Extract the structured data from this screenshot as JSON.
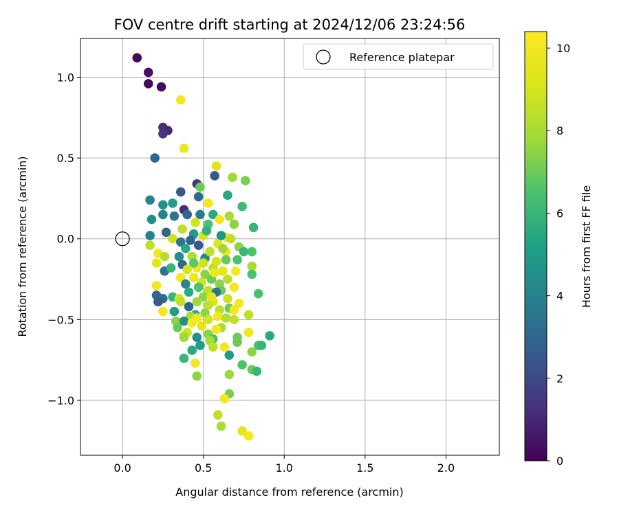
{
  "chart_data": {
    "type": "scatter",
    "title": "FOV centre drift starting at 2024/12/06 23:24:56",
    "xlabel": "Angular distance from reference (arcmin)",
    "ylabel": "Rotation from reference (arcmin)",
    "xlim": [
      -0.26,
      2.33
    ],
    "ylim": [
      -1.34,
      1.24
    ],
    "xticks": [
      0.0,
      0.5,
      1.0,
      1.5,
      2.0
    ],
    "xtick_labels": [
      "0.0",
      "0.5",
      "1.0",
      "1.5",
      "2.0"
    ],
    "yticks": [
      -1.0,
      -0.5,
      0.0,
      0.5,
      1.0
    ],
    "ytick_labels": [
      "−1.0",
      "−0.5",
      "0.0",
      "0.5",
      "1.0"
    ],
    "grid": true,
    "legend": {
      "placement": "top-right",
      "entries": [
        "Reference platepar"
      ]
    },
    "reference_point": {
      "x": 0.0,
      "y": 0.0,
      "label": "Reference platepar"
    },
    "colorbar": {
      "label": "Hours from first FF file",
      "colormap": "viridis",
      "range": [
        0,
        10.4
      ],
      "ticks": [
        0,
        2,
        4,
        6,
        8,
        10
      ],
      "tick_labels": [
        "0",
        "2",
        "4",
        "6",
        "8",
        "10"
      ]
    },
    "points": [
      {
        "x": 0.09,
        "y": 1.12,
        "h": 0.2
      },
      {
        "x": 0.16,
        "y": 1.03,
        "h": 0.4
      },
      {
        "x": 0.16,
        "y": 0.96,
        "h": 0.2
      },
      {
        "x": 0.24,
        "y": 0.94,
        "h": 0.3
      },
      {
        "x": 0.36,
        "y": 0.86,
        "h": 10.0
      },
      {
        "x": 0.25,
        "y": 0.69,
        "h": 1.2
      },
      {
        "x": 0.28,
        "y": 0.67,
        "h": 1.0
      },
      {
        "x": 0.25,
        "y": 0.65,
        "h": 1.5
      },
      {
        "x": 0.38,
        "y": 0.56,
        "h": 9.8
      },
      {
        "x": 0.2,
        "y": 0.5,
        "h": 3.0
      },
      {
        "x": 0.58,
        "y": 0.45,
        "h": 9.2
      },
      {
        "x": 0.57,
        "y": 0.39,
        "h": 2.5
      },
      {
        "x": 0.68,
        "y": 0.38,
        "h": 7.8
      },
      {
        "x": 0.76,
        "y": 0.36,
        "h": 7.2
      },
      {
        "x": 0.46,
        "y": 0.34,
        "h": 1.5
      },
      {
        "x": 0.48,
        "y": 0.32,
        "h": 7.0
      },
      {
        "x": 0.36,
        "y": 0.29,
        "h": 2.5
      },
      {
        "x": 0.65,
        "y": 0.27,
        "h": 5.5
      },
      {
        "x": 0.17,
        "y": 0.24,
        "h": 4.0
      },
      {
        "x": 0.47,
        "y": 0.26,
        "h": 3.2
      },
      {
        "x": 0.53,
        "y": 0.22,
        "h": 10.0
      },
      {
        "x": 0.25,
        "y": 0.21,
        "h": 4.5
      },
      {
        "x": 0.31,
        "y": 0.22,
        "h": 5.0
      },
      {
        "x": 0.74,
        "y": 0.2,
        "h": 6.2
      },
      {
        "x": 0.38,
        "y": 0.18,
        "h": 1.2
      },
      {
        "x": 0.4,
        "y": 0.15,
        "h": 3.0
      },
      {
        "x": 0.25,
        "y": 0.15,
        "h": 4.0
      },
      {
        "x": 0.32,
        "y": 0.14,
        "h": 3.5
      },
      {
        "x": 0.56,
        "y": 0.15,
        "h": 5.5
      },
      {
        "x": 0.66,
        "y": 0.14,
        "h": 8.0
      },
      {
        "x": 0.18,
        "y": 0.12,
        "h": 4.5
      },
      {
        "x": 0.6,
        "y": 0.12,
        "h": 10.0
      },
      {
        "x": 0.45,
        "y": 0.1,
        "h": 9.0
      },
      {
        "x": 0.53,
        "y": 0.09,
        "h": 6.5
      },
      {
        "x": 0.69,
        "y": 0.09,
        "h": 7.5
      },
      {
        "x": 0.81,
        "y": 0.07,
        "h": 6.0
      },
      {
        "x": 0.37,
        "y": 0.06,
        "h": 8.5
      },
      {
        "x": 0.27,
        "y": 0.04,
        "h": 3.0
      },
      {
        "x": 0.17,
        "y": 0.02,
        "h": 4.0
      },
      {
        "x": 0.44,
        "y": 0.03,
        "h": 5.0
      },
      {
        "x": 0.5,
        "y": 0.02,
        "h": 9.0
      },
      {
        "x": 0.64,
        "y": 0.01,
        "h": 10.0
      },
      {
        "x": 0.67,
        "y": 0.0,
        "h": 8.5
      },
      {
        "x": 0.31,
        "y": 0.0,
        "h": 8.8
      },
      {
        "x": 0.36,
        "y": -0.02,
        "h": 3.5
      },
      {
        "x": 0.17,
        "y": -0.04,
        "h": 8.5
      },
      {
        "x": 0.47,
        "y": -0.04,
        "h": 2.5
      },
      {
        "x": 0.59,
        "y": -0.03,
        "h": 9.5
      },
      {
        "x": 0.39,
        "y": -0.06,
        "h": 5.5
      },
      {
        "x": 0.72,
        "y": -0.05,
        "h": 7.5
      },
      {
        "x": 0.64,
        "y": -0.08,
        "h": 10.0
      },
      {
        "x": 0.75,
        "y": -0.08,
        "h": 6.0
      },
      {
        "x": 0.8,
        "y": -0.08,
        "h": 6.5
      },
      {
        "x": 0.22,
        "y": -0.09,
        "h": 10.0
      },
      {
        "x": 0.26,
        "y": -0.11,
        "h": 8.2
      },
      {
        "x": 0.35,
        "y": -0.11,
        "h": 4.5
      },
      {
        "x": 0.43,
        "y": -0.11,
        "h": 8.0
      },
      {
        "x": 0.51,
        "y": -0.12,
        "h": 4.2
      },
      {
        "x": 0.64,
        "y": -0.13,
        "h": 7.0
      },
      {
        "x": 0.71,
        "y": -0.13,
        "h": 6.5
      },
      {
        "x": 0.21,
        "y": -0.15,
        "h": 9.5
      },
      {
        "x": 0.37,
        "y": -0.16,
        "h": 3.0
      },
      {
        "x": 0.46,
        "y": -0.18,
        "h": 10.0
      },
      {
        "x": 0.56,
        "y": -0.18,
        "h": 8.5
      },
      {
        "x": 0.8,
        "y": -0.17,
        "h": 8.0
      },
      {
        "x": 0.4,
        "y": -0.19,
        "h": 9.0
      },
      {
        "x": 0.26,
        "y": -0.2,
        "h": 3.5
      },
      {
        "x": 0.62,
        "y": -0.2,
        "h": 9.5
      },
      {
        "x": 0.7,
        "y": -0.2,
        "h": 10.0
      },
      {
        "x": 0.3,
        "y": -0.18,
        "h": 6.0
      },
      {
        "x": 0.51,
        "y": -0.22,
        "h": 7.5
      },
      {
        "x": 0.8,
        "y": -0.22,
        "h": 6.5
      },
      {
        "x": 0.44,
        "y": -0.24,
        "h": 9.8
      },
      {
        "x": 0.36,
        "y": -0.24,
        "h": 10.0
      },
      {
        "x": 0.55,
        "y": -0.25,
        "h": 7.0
      },
      {
        "x": 0.65,
        "y": -0.25,
        "h": 8.5
      },
      {
        "x": 0.49,
        "y": -0.27,
        "h": 9.0
      },
      {
        "x": 0.39,
        "y": -0.28,
        "h": 4.2
      },
      {
        "x": 0.6,
        "y": -0.28,
        "h": 7.5
      },
      {
        "x": 0.21,
        "y": -0.29,
        "h": 10.0
      },
      {
        "x": 0.47,
        "y": -0.3,
        "h": 6.5
      },
      {
        "x": 0.69,
        "y": -0.3,
        "h": 10.0
      },
      {
        "x": 0.53,
        "y": -0.32,
        "h": 8.5
      },
      {
        "x": 0.61,
        "y": -0.32,
        "h": 7.0
      },
      {
        "x": 0.58,
        "y": -0.33,
        "h": 3.5
      },
      {
        "x": 0.41,
        "y": -0.33,
        "h": 5.5
      },
      {
        "x": 0.84,
        "y": -0.34,
        "h": 6.5
      },
      {
        "x": 0.21,
        "y": -0.35,
        "h": 3.0
      },
      {
        "x": 0.31,
        "y": -0.36,
        "h": 6.0
      },
      {
        "x": 0.5,
        "y": -0.36,
        "h": 7.5
      },
      {
        "x": 0.65,
        "y": -0.37,
        "h": 8.8
      },
      {
        "x": 0.25,
        "y": -0.37,
        "h": 3.2
      },
      {
        "x": 0.35,
        "y": -0.37,
        "h": 9.0
      },
      {
        "x": 0.22,
        "y": -0.39,
        "h": 2.5
      },
      {
        "x": 0.36,
        "y": -0.39,
        "h": 8.5
      },
      {
        "x": 0.46,
        "y": -0.39,
        "h": 7.8
      },
      {
        "x": 0.56,
        "y": -0.39,
        "h": 9.2
      },
      {
        "x": 0.72,
        "y": -0.4,
        "h": 10.0
      },
      {
        "x": 0.53,
        "y": -0.41,
        "h": 8.5
      },
      {
        "x": 0.41,
        "y": -0.42,
        "h": 3.0
      },
      {
        "x": 0.66,
        "y": -0.43,
        "h": 7.0
      },
      {
        "x": 0.25,
        "y": -0.45,
        "h": 10.0
      },
      {
        "x": 0.32,
        "y": -0.45,
        "h": 5.0
      },
      {
        "x": 0.6,
        "y": -0.44,
        "h": 8.5
      },
      {
        "x": 0.69,
        "y": -0.44,
        "h": 10.0
      },
      {
        "x": 0.51,
        "y": -0.46,
        "h": 7.5
      },
      {
        "x": 0.45,
        "y": -0.47,
        "h": 5.5
      },
      {
        "x": 0.42,
        "y": -0.48,
        "h": 8.0
      },
      {
        "x": 0.78,
        "y": -0.47,
        "h": 8.5
      },
      {
        "x": 0.59,
        "y": -0.48,
        "h": 10.0
      },
      {
        "x": 0.64,
        "y": -0.49,
        "h": 8.2
      },
      {
        "x": 0.46,
        "y": -0.49,
        "h": 10.0
      },
      {
        "x": 0.33,
        "y": -0.51,
        "h": 7.5
      },
      {
        "x": 0.53,
        "y": -0.5,
        "h": 9.0
      },
      {
        "x": 0.69,
        "y": -0.5,
        "h": 8.5
      },
      {
        "x": 0.38,
        "y": -0.51,
        "h": 4.5
      },
      {
        "x": 0.43,
        "y": -0.52,
        "h": 10.0
      },
      {
        "x": 0.34,
        "y": -0.55,
        "h": 7.0
      },
      {
        "x": 0.49,
        "y": -0.54,
        "h": 9.5
      },
      {
        "x": 0.61,
        "y": -0.55,
        "h": 8.0
      },
      {
        "x": 0.58,
        "y": -0.56,
        "h": 10.0
      },
      {
        "x": 0.4,
        "y": -0.58,
        "h": 9.0
      },
      {
        "x": 0.78,
        "y": -0.58,
        "h": 10.0
      },
      {
        "x": 0.53,
        "y": -0.59,
        "h": 7.5
      },
      {
        "x": 0.38,
        "y": -0.6,
        "h": 8.5
      },
      {
        "x": 0.46,
        "y": -0.61,
        "h": 4.5
      },
      {
        "x": 0.56,
        "y": -0.62,
        "h": 6.5
      },
      {
        "x": 0.71,
        "y": -0.61,
        "h": 7.0
      },
      {
        "x": 0.91,
        "y": -0.6,
        "h": 5.5
      },
      {
        "x": 0.38,
        "y": -0.61,
        "h": 7.8
      },
      {
        "x": 0.54,
        "y": -0.63,
        "h": 8.0
      },
      {
        "x": 0.71,
        "y": -0.64,
        "h": 7.0
      },
      {
        "x": 0.48,
        "y": -0.66,
        "h": 5.0
      },
      {
        "x": 0.63,
        "y": -0.67,
        "h": 10.0
      },
      {
        "x": 0.56,
        "y": -0.67,
        "h": 8.5
      },
      {
        "x": 0.84,
        "y": -0.66,
        "h": 6.5
      },
      {
        "x": 0.86,
        "y": -0.66,
        "h": 6.0
      },
      {
        "x": 0.43,
        "y": -0.69,
        "h": 5.5
      },
      {
        "x": 0.8,
        "y": -0.7,
        "h": 7.5
      },
      {
        "x": 0.66,
        "y": -0.72,
        "h": 5.0
      },
      {
        "x": 0.38,
        "y": -0.74,
        "h": 6.0
      },
      {
        "x": 0.45,
        "y": -0.77,
        "h": 10.0
      },
      {
        "x": 0.74,
        "y": -0.78,
        "h": 6.5
      },
      {
        "x": 0.8,
        "y": -0.81,
        "h": 7.0
      },
      {
        "x": 0.83,
        "y": -0.82,
        "h": 6.0
      },
      {
        "x": 0.46,
        "y": -0.85,
        "h": 7.5
      },
      {
        "x": 0.66,
        "y": -0.84,
        "h": 7.8
      },
      {
        "x": 0.66,
        "y": -0.96,
        "h": 7.2
      },
      {
        "x": 0.63,
        "y": -0.99,
        "h": 10.0
      },
      {
        "x": 0.59,
        "y": -1.09,
        "h": 8.5
      },
      {
        "x": 0.61,
        "y": -1.16,
        "h": 8.0
      },
      {
        "x": 0.74,
        "y": -1.19,
        "h": 9.5
      },
      {
        "x": 0.78,
        "y": -1.22,
        "h": 10.0
      },
      {
        "x": 0.54,
        "y": -0.08,
        "h": 8.5
      },
      {
        "x": 0.58,
        "y": -0.14,
        "h": 9.0
      },
      {
        "x": 0.62,
        "y": -0.06,
        "h": 7.8
      },
      {
        "x": 0.55,
        "y": -0.36,
        "h": 9.5
      },
      {
        "x": 0.48,
        "y": 0.15,
        "h": 3.8
      },
      {
        "x": 0.42,
        "y": -0.01,
        "h": 2.8
      },
      {
        "x": 0.52,
        "y": 0.05,
        "h": 5.8
      },
      {
        "x": 0.57,
        "y": -0.21,
        "h": 9.8
      },
      {
        "x": 0.5,
        "y": -0.15,
        "h": 8.8
      },
      {
        "x": 0.61,
        "y": 0.02,
        "h": 4.8
      },
      {
        "x": 0.44,
        "y": -0.15,
        "h": 6.8
      }
    ]
  }
}
